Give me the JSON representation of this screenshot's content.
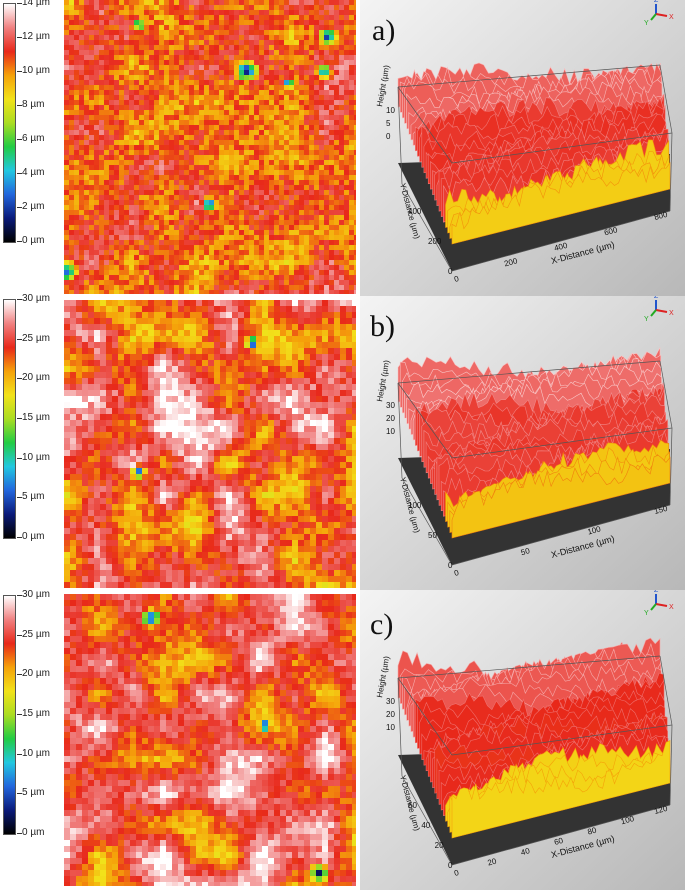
{
  "panels": [
    {
      "label": "a)",
      "legend_ticks": [
        "14 µm",
        "12 µm",
        "10 µm",
        "8 µm",
        "6 µm",
        "4 µm",
        "2 µm",
        "0 µm"
      ],
      "axis_labels": {
        "z": "Height (µm)",
        "y": "Y-Distance (µm)",
        "x": "X-Distance (µm)"
      },
      "z_ticks": [
        "10",
        "5",
        "0"
      ],
      "x_ticks": [
        "0",
        "200",
        "400",
        "600",
        "800"
      ],
      "y_ticks": [
        "0",
        "200",
        "400"
      ]
    },
    {
      "label": "b)",
      "legend_ticks": [
        "30 µm",
        "25 µm",
        "20 µm",
        "15 µm",
        "10 µm",
        "5 µm",
        "0 µm"
      ],
      "axis_labels": {
        "z": "Height (µm)",
        "y": "Y-Distance (µm)",
        "x": "X-Distance (µm)"
      },
      "z_ticks": [
        "30",
        "20",
        "10"
      ],
      "x_ticks": [
        "0",
        "50",
        "100",
        "150"
      ],
      "y_ticks": [
        "0",
        "50",
        "100"
      ]
    },
    {
      "label": "c)",
      "legend_ticks": [
        "30 µm",
        "25 µm",
        "20 µm",
        "15 µm",
        "10 µm",
        "5 µm",
        "0 µm"
      ],
      "axis_labels": {
        "z": "Height (µm)",
        "y": "Y-Distance (µm)",
        "x": "X-Distance (µm)"
      },
      "z_ticks": [
        "30",
        "20",
        "10"
      ],
      "x_ticks": [
        "0",
        "20",
        "40",
        "60",
        "80",
        "100",
        "120"
      ],
      "y_ticks": [
        "0",
        "20",
        "40",
        "60"
      ]
    }
  ],
  "axis_icon_letters": {
    "x": "X",
    "y": "Y",
    "z": "Z"
  },
  "colors": {
    "scale": [
      "#000000",
      "#0a1a7a",
      "#2266dd",
      "#22c8e0",
      "#22cc44",
      "#aadd22",
      "#f2e21a",
      "#f5a20a",
      "#e8281a",
      "#f08080",
      "#ffffff"
    ],
    "floor": "#333333",
    "view_bg_light": "#f4f4f4",
    "view_bg_dark": "#b8b8b8"
  }
}
